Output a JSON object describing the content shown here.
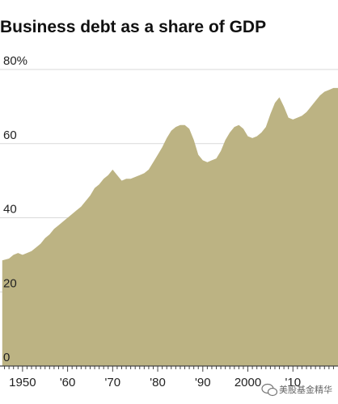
{
  "chart_data": {
    "type": "area",
    "title": "Business debt as a share of GDP",
    "subtitle": "",
    "xlabel": "",
    "ylabel": "",
    "xlim": [
      1945,
      2020
    ],
    "ylim": [
      0,
      80
    ],
    "y_ticks": [
      {
        "value": 0,
        "label": "0"
      },
      {
        "value": 20,
        "label": "20"
      },
      {
        "value": 40,
        "label": "40"
      },
      {
        "value": 60,
        "label": "60"
      },
      {
        "value": 80,
        "label": "80%"
      }
    ],
    "x_ticks": [
      {
        "value": 1950,
        "label": "1950"
      },
      {
        "value": 1960,
        "label": "'60"
      },
      {
        "value": 1970,
        "label": "'70"
      },
      {
        "value": 1980,
        "label": "'80"
      },
      {
        "value": 1990,
        "label": "'90"
      },
      {
        "value": 2000,
        "label": "2000"
      },
      {
        "value": 2010,
        "label": "'10"
      }
    ],
    "grid": true,
    "series": [
      {
        "color": "#bcb383",
        "x": [
          1945.5,
          1947,
          1948,
          1949,
          1950,
          1951,
          1952,
          1953,
          1954,
          1955,
          1956,
          1957,
          1958,
          1959,
          1960,
          1961,
          1962,
          1963,
          1964,
          1965,
          1966,
          1967,
          1968,
          1969,
          1970,
          1971,
          1972,
          1973,
          1974,
          1975,
          1976,
          1977,
          1978,
          1979,
          1980,
          1981,
          1982,
          1983,
          1984,
          1985,
          1986,
          1987,
          1988,
          1989,
          1990,
          1991,
          1992,
          1993,
          1994,
          1995,
          1996,
          1997,
          1998,
          1999,
          2000,
          2001,
          2002,
          2003,
          2004,
          2005,
          2006,
          2007,
          2008,
          2009,
          2010,
          2011,
          2012,
          2013,
          2014,
          2015,
          2016,
          2017,
          2018,
          2019
        ],
        "y": [
          28.5,
          29,
          30,
          30.5,
          30,
          30.5,
          31,
          32,
          33,
          34.5,
          35.5,
          37,
          38,
          39,
          40,
          41,
          42,
          43,
          44.5,
          46,
          48,
          49,
          50.5,
          51.5,
          53,
          51.5,
          50,
          50.5,
          50.5,
          51,
          51.5,
          52,
          53,
          55,
          57,
          59,
          61.5,
          63.5,
          64.5,
          65,
          65,
          64,
          61,
          57,
          55.5,
          55,
          55.5,
          56,
          58,
          61,
          63,
          64.5,
          65,
          64,
          62,
          61.5,
          62,
          63,
          64.5,
          68,
          71,
          72.5,
          70,
          67,
          66.5,
          67,
          67.5,
          68.5,
          70,
          71.5,
          73,
          74,
          74.5,
          75
        ]
      }
    ]
  },
  "watermark": "美股基金精华"
}
